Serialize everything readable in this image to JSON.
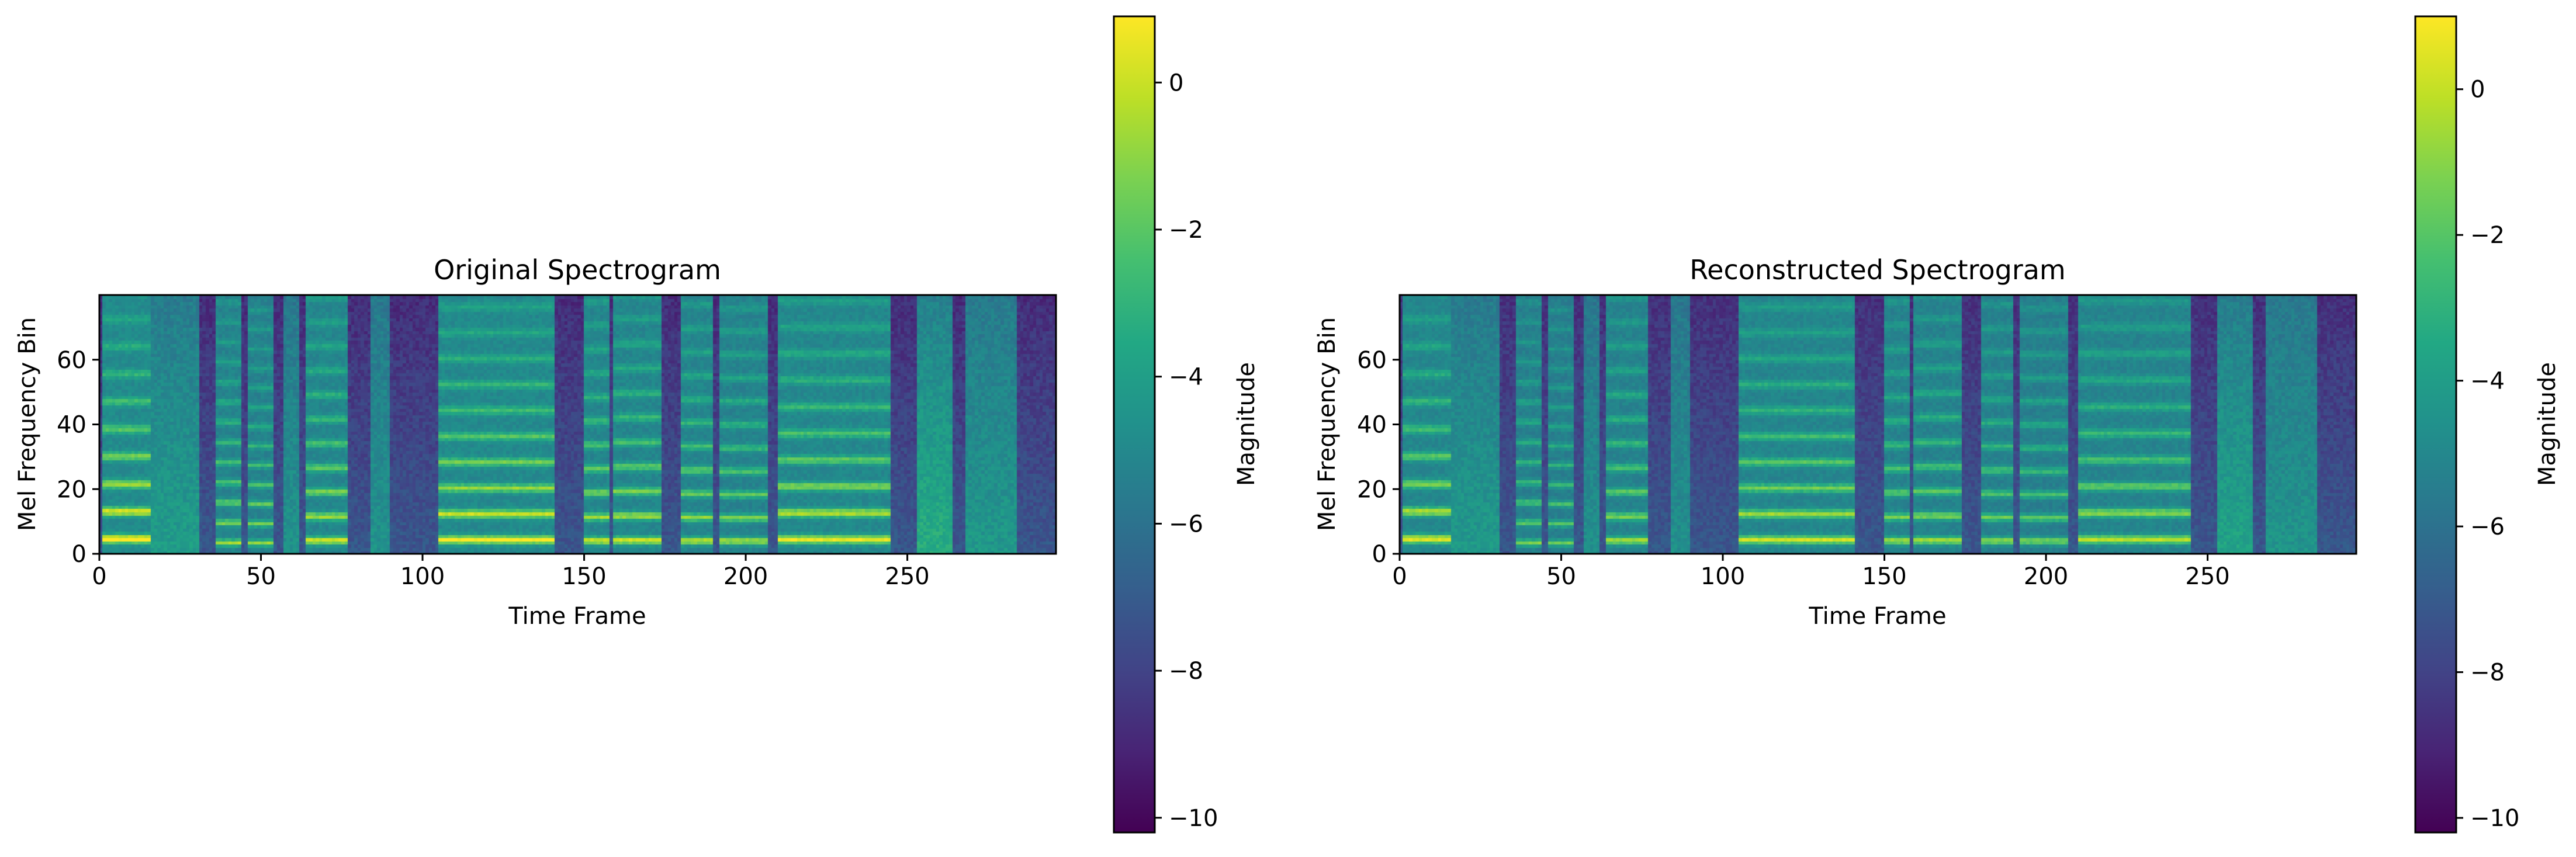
{
  "chart_data": [
    {
      "type": "heatmap",
      "title": "Original Spectrogram",
      "xlabel": "Time Frame",
      "ylabel": "Mel Frequency Bin",
      "xlim": [
        0,
        296
      ],
      "ylim": [
        0,
        80
      ],
      "xticks": [
        0,
        50,
        100,
        150,
        200,
        250
      ],
      "yticks": [
        0,
        20,
        40,
        60
      ],
      "colorbar": {
        "label": "Magnitude",
        "range": [
          -10.2,
          0.9
        ],
        "ticks": [
          0,
          -2,
          -4,
          -6,
          -8,
          -10
        ],
        "tick_labels": [
          "0",
          "−2",
          "−4",
          "−6",
          "−8",
          "−10"
        ],
        "colormap": "viridis"
      },
      "segments": [
        {
          "x": [
            1,
            16
          ],
          "harmonics": true,
          "spacing": 8.5,
          "strength": 1.0
        },
        {
          "x": [
            16,
            31
          ],
          "harmonics": false,
          "strength": 0.45
        },
        {
          "x": [
            36,
            44
          ],
          "harmonics": true,
          "spacing": 6.2,
          "strength": 0.75
        },
        {
          "x": [
            46,
            54
          ],
          "harmonics": true,
          "spacing": 6.0,
          "strength": 0.7
        },
        {
          "x": [
            57,
            62
          ],
          "harmonics": false,
          "strength": 0.35
        },
        {
          "x": [
            64,
            77
          ],
          "harmonics": true,
          "spacing": 7.5,
          "strength": 0.85
        },
        {
          "x": [
            84,
            90
          ],
          "harmonics": false,
          "strength": 0.35
        },
        {
          "x": [
            105,
            141
          ],
          "harmonics": true,
          "spacing": 8.0,
          "strength": 0.95
        },
        {
          "x": [
            150,
            158
          ],
          "harmonics": true,
          "spacing": 7.4,
          "strength": 0.85
        },
        {
          "x": [
            159,
            174
          ],
          "harmonics": true,
          "spacing": 7.6,
          "strength": 0.85
        },
        {
          "x": [
            180,
            190
          ],
          "harmonics": true,
          "spacing": 7.3,
          "strength": 0.8
        },
        {
          "x": [
            192,
            207
          ],
          "harmonics": true,
          "spacing": 7.2,
          "strength": 0.75
        },
        {
          "x": [
            210,
            245
          ],
          "harmonics": true,
          "spacing": 8.2,
          "strength": 0.9
        },
        {
          "x": [
            253,
            264
          ],
          "harmonics": false,
          "strength": 0.6
        },
        {
          "x": [
            268,
            284
          ],
          "harmonics": false,
          "strength": 0.4
        }
      ]
    },
    {
      "type": "heatmap",
      "title": "Reconstructed Spectrogram",
      "xlabel": "Time Frame",
      "ylabel": "Mel Frequency Bin",
      "xlim": [
        0,
        296
      ],
      "ylim": [
        0,
        80
      ],
      "xticks": [
        0,
        50,
        100,
        150,
        200,
        250
      ],
      "yticks": [
        0,
        20,
        40,
        60
      ],
      "colorbar": {
        "label": "Magnitude",
        "range": [
          -10.2,
          1.0
        ],
        "ticks": [
          0,
          -2,
          -4,
          -6,
          -8,
          -10
        ],
        "tick_labels": [
          "0",
          "−2",
          "−4",
          "−6",
          "−8",
          "−10"
        ],
        "colormap": "viridis"
      },
      "segments": [
        {
          "x": [
            1,
            16
          ],
          "harmonics": true,
          "spacing": 8.5,
          "strength": 0.95
        },
        {
          "x": [
            16,
            31
          ],
          "harmonics": false,
          "strength": 0.45
        },
        {
          "x": [
            36,
            44
          ],
          "harmonics": true,
          "spacing": 6.2,
          "strength": 0.7
        },
        {
          "x": [
            46,
            54
          ],
          "harmonics": true,
          "spacing": 6.0,
          "strength": 0.65
        },
        {
          "x": [
            57,
            62
          ],
          "harmonics": false,
          "strength": 0.35
        },
        {
          "x": [
            64,
            77
          ],
          "harmonics": true,
          "spacing": 7.5,
          "strength": 0.8
        },
        {
          "x": [
            84,
            90
          ],
          "harmonics": false,
          "strength": 0.35
        },
        {
          "x": [
            105,
            141
          ],
          "harmonics": true,
          "spacing": 8.0,
          "strength": 0.9
        },
        {
          "x": [
            150,
            158
          ],
          "harmonics": true,
          "spacing": 7.4,
          "strength": 0.8
        },
        {
          "x": [
            159,
            174
          ],
          "harmonics": true,
          "spacing": 7.6,
          "strength": 0.8
        },
        {
          "x": [
            180,
            190
          ],
          "harmonics": true,
          "spacing": 7.3,
          "strength": 0.75
        },
        {
          "x": [
            192,
            207
          ],
          "harmonics": true,
          "spacing": 7.2,
          "strength": 0.7
        },
        {
          "x": [
            210,
            245
          ],
          "harmonics": true,
          "spacing": 8.2,
          "strength": 0.85
        },
        {
          "x": [
            253,
            264
          ],
          "harmonics": false,
          "strength": 0.55
        },
        {
          "x": [
            268,
            284
          ],
          "harmonics": false,
          "strength": 0.4
        }
      ]
    }
  ]
}
